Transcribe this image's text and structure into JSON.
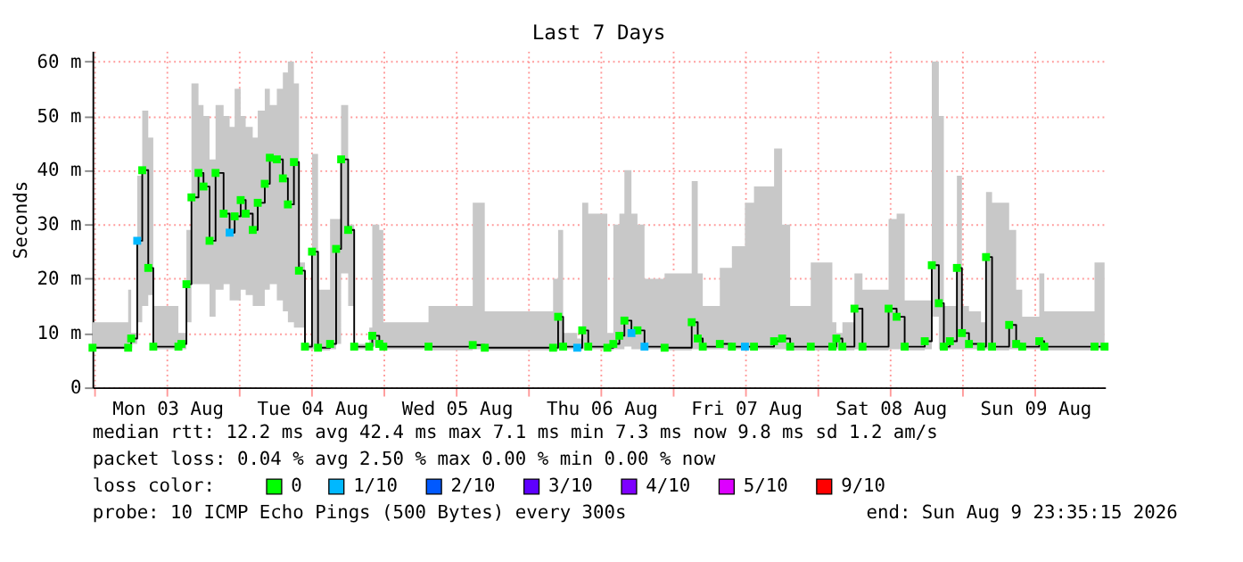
{
  "chart_data": {
    "type": "step",
    "title": "Last 7 Days",
    "ylabel": "Seconds",
    "xlim": [
      "2026-08-02T23:35",
      "2026-08-09T23:35"
    ],
    "xticks": [
      {
        "value": "2026-08-03T00:00",
        "label": null
      },
      {
        "value": "2026-08-03T12:00",
        "label": "Mon 03 Aug"
      },
      {
        "value": "2026-08-04T00:00",
        "label": null
      },
      {
        "value": "2026-08-04T12:00",
        "label": "Tue 04 Aug"
      },
      {
        "value": "2026-08-05T00:00",
        "label": null
      },
      {
        "value": "2026-08-05T12:00",
        "label": "Wed 05 Aug"
      },
      {
        "value": "2026-08-06T00:00",
        "label": null
      },
      {
        "value": "2026-08-06T12:00",
        "label": "Thu 06 Aug"
      },
      {
        "value": "2026-08-07T00:00",
        "label": null
      },
      {
        "value": "2026-08-07T12:00",
        "label": "Fri 07 Aug"
      },
      {
        "value": "2026-08-08T00:00",
        "label": null
      },
      {
        "value": "2026-08-08T12:00",
        "label": "Sat 08 Aug"
      },
      {
        "value": "2026-08-09T00:00",
        "label": null
      },
      {
        "value": "2026-08-09T12:00",
        "label": "Sun 09 Aug"
      }
    ],
    "ylim": [
      0,
      62
    ],
    "yticks": [
      0,
      {
        "value": 10,
        "label": "10 m"
      },
      {
        "value": 20,
        "label": "20 m"
      },
      {
        "value": 30,
        "label": "30 m"
      },
      {
        "value": 40,
        "label": "40 m"
      },
      {
        "value": 50,
        "label": "50 m"
      },
      {
        "value": 60,
        "label": "60 m"
      }
    ],
    "grid": true,
    "legend": "bottom",
    "legend_title": "loss color:",
    "x": [
      "2026-08-02T23:35",
      "2026-08-03T05:30",
      "2026-08-03T06:00",
      "2026-08-03T07:00",
      "2026-08-03T07:50",
      "2026-08-03T08:50",
      "2026-08-03T09:40",
      "2026-08-03T13:50",
      "2026-08-03T14:20",
      "2026-08-03T15:10",
      "2026-08-03T16:00",
      "2026-08-03T17:10",
      "2026-08-03T18:00",
      "2026-08-03T19:00",
      "2026-08-03T20:00",
      "2026-08-03T21:20",
      "2026-08-03T22:20",
      "2026-08-03T23:10",
      "2026-08-04T00:10",
      "2026-08-04T01:00",
      "2026-08-04T02:10",
      "2026-08-04T03:00",
      "2026-08-04T04:10",
      "2026-08-04T05:00",
      "2026-08-04T06:10",
      "2026-08-04T07:10",
      "2026-08-04T08:00",
      "2026-08-04T09:00",
      "2026-08-04T09:50",
      "2026-08-04T10:50",
      "2026-08-04T12:00",
      "2026-08-04T13:00",
      "2026-08-04T15:00",
      "2026-08-04T16:00",
      "2026-08-04T16:50",
      "2026-08-04T18:00",
      "2026-08-04T19:00",
      "2026-08-04T21:30",
      "2026-08-04T22:00",
      "2026-08-04T23:10",
      "2026-08-04T23:50",
      "2026-08-05T07:20",
      "2026-08-05T14:40",
      "2026-08-05T16:40",
      "2026-08-06T04:00",
      "2026-08-06T04:50",
      "2026-08-06T05:40",
      "2026-08-06T08:00",
      "2026-08-06T08:50",
      "2026-08-06T09:50",
      "2026-08-06T13:00",
      "2026-08-06T14:00",
      "2026-08-06T15:00",
      "2026-08-06T15:50",
      "2026-08-06T17:00",
      "2026-08-06T18:00",
      "2026-08-06T19:10",
      "2026-08-06T22:30",
      "2026-08-07T03:00",
      "2026-08-07T04:00",
      "2026-08-07T04:50",
      "2026-08-07T07:40",
      "2026-08-07T09:40",
      "2026-08-07T11:50",
      "2026-08-07T13:20",
      "2026-08-07T16:40",
      "2026-08-07T18:00",
      "2026-08-07T19:20",
      "2026-08-07T22:45",
      "2026-08-08T02:20",
      "2026-08-08T03:00",
      "2026-08-08T04:00",
      "2026-08-08T06:00",
      "2026-08-08T07:20",
      "2026-08-08T11:40",
      "2026-08-08T13:00",
      "2026-08-08T14:20",
      "2026-08-08T17:40",
      "2026-08-08T18:50",
      "2026-08-08T20:00",
      "2026-08-08T20:50",
      "2026-08-08T21:50",
      "2026-08-08T23:00",
      "2026-08-08T23:50",
      "2026-08-09T01:00",
      "2026-08-09T03:00",
      "2026-08-09T03:50",
      "2026-08-09T04:50",
      "2026-08-09T07:40",
      "2026-08-09T08:50",
      "2026-08-09T09:50",
      "2026-08-09T12:40",
      "2026-08-09T13:30",
      "2026-08-09T21:50",
      "2026-08-09T23:30"
    ],
    "series": [
      {
        "color": "#000000",
        "line_style": "solid",
        "values": [
          7.3,
          7.3,
          9,
          27,
          40,
          22,
          7.5,
          7.5,
          8,
          19,
          35,
          39.5,
          37,
          27,
          39.5,
          32,
          28.5,
          31.5,
          34.5,
          32,
          29,
          34,
          37.5,
          42.3,
          42,
          38.5,
          33.7,
          41.5,
          21.5,
          7.5,
          25,
          7.3,
          8,
          25.5,
          42,
          29,
          7.5,
          7.5,
          9.5,
          8,
          7.5,
          7.5,
          7.8,
          7.3,
          7.3,
          13,
          7.5,
          7.3,
          10.5,
          7.5,
          7.3,
          8,
          9.5,
          12.3,
          10,
          10.5,
          7.5,
          7.3,
          12,
          9,
          7.5,
          8,
          7.5,
          7.5,
          7.5,
          8.5,
          9,
          7.5,
          7.5,
          7.5,
          9,
          7.5,
          14.5,
          7.5,
          14.5,
          13,
          7.5,
          8.5,
          22.5,
          15.5,
          7.5,
          8.5,
          22,
          10,
          8,
          7.5,
          24,
          7.5,
          11.5,
          8,
          7.5,
          8.5,
          7.5,
          7.5,
          7.5
        ],
        "lower": [
          7,
          6.8,
          8,
          12,
          15,
          17,
          7,
          6.8,
          7,
          12,
          19,
          19,
          19,
          13,
          18,
          19,
          16,
          16,
          18,
          17,
          15,
          15,
          18,
          19,
          16,
          14,
          12,
          11,
          11,
          7,
          7,
          6.8,
          7,
          8,
          21,
          15,
          7,
          7,
          7.5,
          7,
          7,
          6.8,
          7,
          6.8,
          6.8,
          7,
          7,
          6.8,
          7,
          7,
          6.8,
          7,
          7,
          7.5,
          7,
          7,
          7,
          6.8,
          7,
          7,
          7,
          7,
          7,
          7,
          7,
          7,
          7,
          6.8,
          6.8,
          6.8,
          7,
          6.8,
          7,
          6.8,
          7,
          7,
          6.8,
          7,
          13,
          7,
          7,
          7,
          7,
          7,
          7,
          7,
          7,
          6.8,
          7,
          7,
          7,
          7,
          6.8,
          7,
          7
        ],
        "upper": [
          12,
          18,
          10,
          39,
          51,
          46,
          15,
          10,
          10,
          29,
          56,
          52,
          50,
          42,
          52,
          50,
          48,
          55,
          50,
          48,
          46,
          51,
          55,
          52,
          55,
          58,
          60,
          56,
          23,
          8,
          43,
          18,
          31,
          31,
          52,
          30,
          8,
          11,
          30,
          29,
          12,
          15,
          34,
          14,
          20,
          29,
          10,
          9,
          34,
          32,
          10,
          30,
          32,
          40,
          32,
          30,
          20,
          21,
          38,
          21,
          15,
          22,
          26,
          34,
          37,
          44,
          30,
          15,
          23,
          12,
          10,
          12,
          21,
          18,
          31,
          32,
          16,
          16,
          60,
          50,
          15,
          15,
          39,
          15,
          14,
          12,
          36,
          34,
          29,
          18,
          13,
          21,
          14,
          23,
          22
        ]
      },
      {
        "type": "scatter",
        "name": "0",
        "color": "#00ff00",
        "marker": "square",
        "values": [
          7.3,
          7.3,
          9,
          null,
          40,
          22,
          7.5,
          7.5,
          8,
          19,
          35,
          39.5,
          37,
          27,
          39.5,
          32,
          null,
          31.5,
          34.5,
          32,
          29,
          34,
          37.5,
          42.3,
          42,
          38.5,
          33.7,
          41.5,
          21.5,
          7.5,
          25,
          7.3,
          8,
          25.5,
          42,
          29,
          7.5,
          7.5,
          9.5,
          8,
          7.5,
          7.5,
          7.8,
          7.3,
          7.3,
          13,
          7.5,
          null,
          10.5,
          7.5,
          7.3,
          8,
          9.5,
          12.3,
          null,
          10.5,
          null,
          7.3,
          12,
          9,
          7.5,
          8,
          7.5,
          null,
          7.5,
          8.5,
          9,
          7.5,
          7.5,
          7.5,
          9,
          7.5,
          14.5,
          7.5,
          14.5,
          13,
          7.5,
          8.5,
          22.5,
          15.5,
          7.5,
          8.5,
          22,
          10,
          8,
          7.5,
          24,
          7.5,
          11.5,
          8,
          7.5,
          8.5,
          7.5,
          7.5,
          7.5
        ]
      },
      {
        "type": "scatter",
        "name": "1/10",
        "color": "#00b8ff",
        "marker": "square",
        "x": [
          "2026-08-03T07:00",
          "2026-08-03T22:20",
          "2026-08-06T08:00",
          "2026-08-06T17:00",
          "2026-08-06T19:10",
          "2026-08-07T11:50"
        ],
        "values": [
          27,
          28.5,
          7.3,
          10,
          7.5,
          7.5
        ]
      },
      {
        "type": "scatter",
        "name": "2/10",
        "color": "#0059ff",
        "marker": "square",
        "values": [
          null,
          null,
          null,
          null,
          null,
          null,
          null,
          null,
          null,
          null,
          null,
          null,
          null,
          null,
          null,
          null,
          null,
          null,
          null,
          null,
          null,
          null,
          null,
          null,
          null,
          null,
          null,
          null,
          null,
          null,
          null,
          null,
          null,
          null,
          null,
          null,
          null,
          null,
          null,
          null,
          null,
          null,
          null,
          null,
          null,
          null,
          null,
          null,
          null,
          null,
          null,
          null,
          null,
          null,
          null,
          null,
          null,
          null,
          null,
          null,
          null,
          null,
          null,
          null,
          null,
          null,
          null,
          null,
          null,
          null,
          null,
          null,
          null,
          null,
          null,
          null,
          null,
          null,
          null,
          null,
          null,
          null,
          null,
          null,
          null,
          null,
          null,
          null,
          null,
          null,
          null,
          null,
          null,
          null,
          null
        ]
      },
      {
        "type": "scatter",
        "name": "3/10",
        "color": "#5e00ff",
        "marker": "square",
        "values": [
          null,
          null,
          null,
          null,
          null,
          null,
          null,
          null,
          null,
          null,
          null,
          null,
          null,
          null,
          null,
          null,
          null,
          null,
          null,
          null,
          null,
          null,
          null,
          null,
          null,
          null,
          null,
          null,
          null,
          null,
          null,
          null,
          null,
          null,
          null,
          null,
          null,
          null,
          null,
          null,
          null,
          null,
          null,
          null,
          null,
          null,
          null,
          null,
          null,
          null,
          null,
          null,
          null,
          null,
          null,
          null,
          null,
          null,
          null,
          null,
          null,
          null,
          null,
          null,
          null,
          null,
          null,
          null,
          null,
          null,
          null,
          null,
          null,
          null,
          null,
          null,
          null,
          null,
          null,
          null,
          null,
          null,
          null,
          null,
          null,
          null,
          null,
          null,
          null,
          null,
          null,
          null,
          null,
          null,
          null
        ]
      },
      {
        "type": "scatter",
        "name": "4/10",
        "color": "#7e00ff",
        "marker": "square",
        "values": [
          null,
          null,
          null,
          null,
          null,
          null,
          null,
          null,
          null,
          null,
          null,
          null,
          null,
          null,
          null,
          null,
          null,
          null,
          null,
          null,
          null,
          null,
          null,
          null,
          null,
          null,
          null,
          null,
          null,
          null,
          null,
          null,
          null,
          null,
          null,
          null,
          null,
          null,
          null,
          null,
          null,
          null,
          null,
          null,
          null,
          null,
          null,
          null,
          null,
          null,
          null,
          null,
          null,
          null,
          null,
          null,
          null,
          null,
          null,
          null,
          null,
          null,
          null,
          null,
          null,
          null,
          null,
          null,
          null,
          null,
          null,
          null,
          null,
          null,
          null,
          null,
          null,
          null,
          null,
          null,
          null,
          null,
          null,
          null,
          null,
          null,
          null,
          null,
          null,
          null,
          null,
          null,
          null,
          null,
          null
        ]
      },
      {
        "type": "scatter",
        "name": "5/10",
        "color": "#dd00ff",
        "marker": "square",
        "values": [
          null,
          null,
          null,
          null,
          null,
          null,
          null,
          null,
          null,
          null,
          null,
          null,
          null,
          null,
          null,
          null,
          null,
          null,
          null,
          null,
          null,
          null,
          null,
          null,
          null,
          null,
          null,
          null,
          null,
          null,
          null,
          null,
          null,
          null,
          null,
          null,
          null,
          null,
          null,
          null,
          null,
          null,
          null,
          null,
          null,
          null,
          null,
          null,
          null,
          null,
          null,
          null,
          null,
          null,
          null,
          null,
          null,
          null,
          null,
          null,
          null,
          null,
          null,
          null,
          null,
          null,
          null,
          null,
          null,
          null,
          null,
          null,
          null,
          null,
          null,
          null,
          null,
          null,
          null,
          null,
          null,
          null,
          null,
          null,
          null,
          null,
          null,
          null,
          null,
          null,
          null,
          null,
          null,
          null,
          null
        ]
      },
      {
        "type": "scatter",
        "name": "9/10",
        "color": "#ff0000",
        "marker": "square",
        "values": [
          null,
          null,
          null,
          null,
          null,
          null,
          null,
          null,
          null,
          null,
          null,
          null,
          null,
          null,
          null,
          null,
          null,
          null,
          null,
          null,
          null,
          null,
          null,
          null,
          null,
          null,
          null,
          null,
          null,
          null,
          null,
          null,
          null,
          null,
          null,
          null,
          null,
          null,
          null,
          null,
          null,
          null,
          null,
          null,
          null,
          null,
          null,
          null,
          null,
          null,
          null,
          null,
          null,
          null,
          null,
          null,
          null,
          null,
          null,
          null,
          null,
          null,
          null,
          null,
          null,
          null,
          null,
          null,
          null,
          null,
          null,
          null,
          null,
          null,
          null,
          null,
          null,
          null,
          null,
          null,
          null,
          null,
          null,
          null,
          null,
          null,
          null,
          null,
          null,
          null,
          null,
          null,
          null,
          null,
          null
        ]
      }
    ],
    "annotations": [
      "median rtt: 12.2 ms avg 42.4 ms max 7.1 ms min 7.3 ms now 9.8 ms sd 1.2 am/s",
      "packet loss: 0.04 % avg 2.50 % max 0.00 % min 0.00 % now",
      "probe: 10 ICMP Echo Pings (500 Bytes) every 300s",
      "end: Sun Aug 9 23:35:15 2026"
    ]
  }
}
